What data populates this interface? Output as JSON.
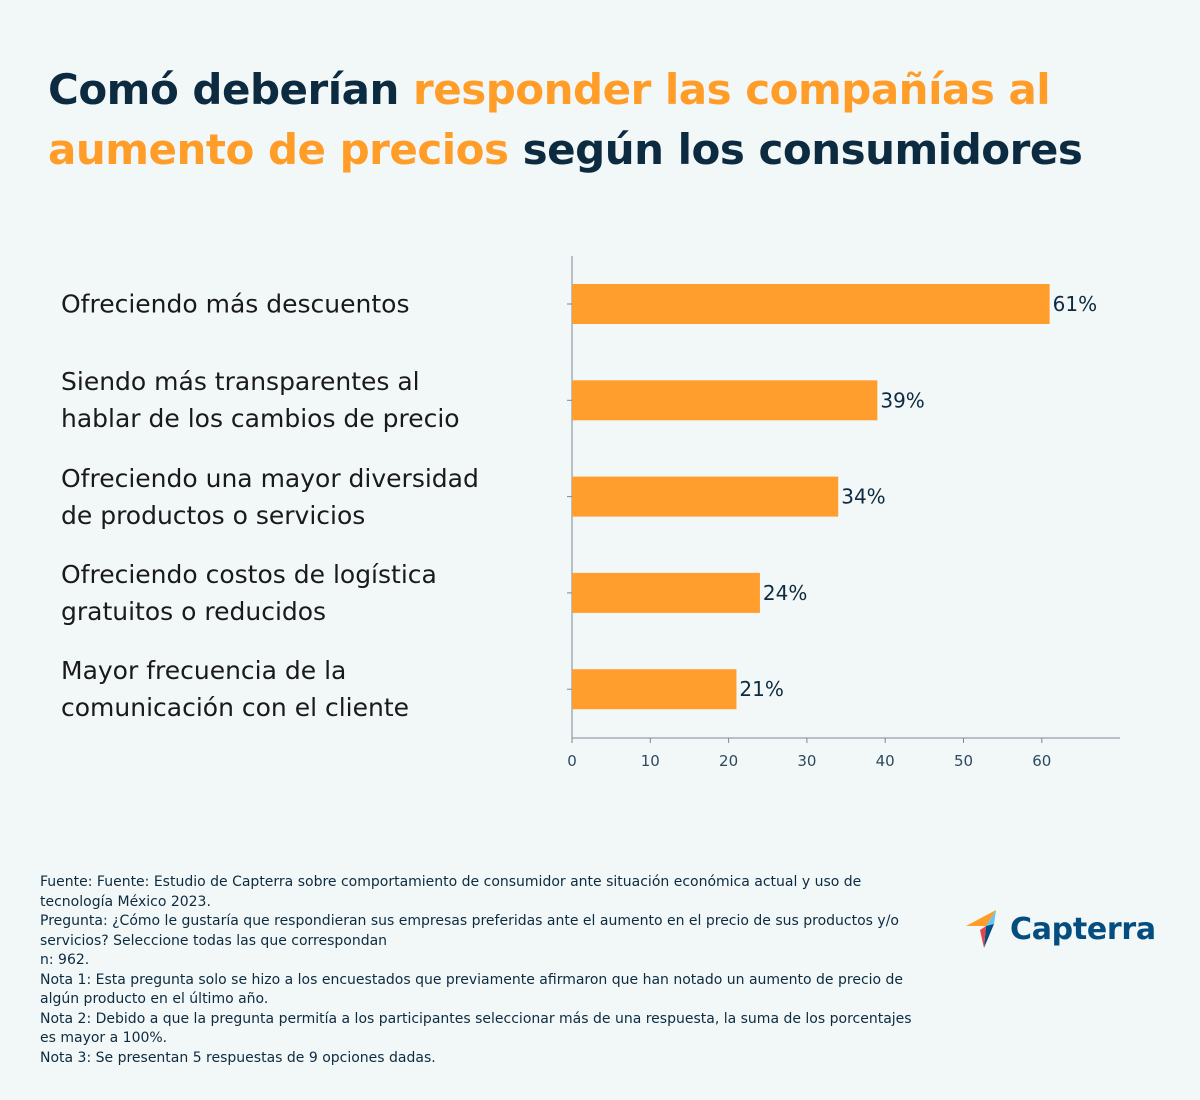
{
  "title": {
    "part1": "Comó deberían ",
    "part2": "responder las compañías al aumento de precios",
    "part3": " según los consumidores"
  },
  "colors": {
    "accent": "#ff9d2d",
    "dark": "#0d2b40",
    "background": "#f2f7f7"
  },
  "chart_data": {
    "type": "bar",
    "orientation": "horizontal",
    "title": "Comó deberían responder las compañías al aumento de precios según los consumidores",
    "categories": [
      "Ofreciendo más descuentos",
      "Siendo más transparentes al hablar de los cambios de precio",
      "Ofreciendo una mayor diversidad de productos o servicios",
      "Ofreciendo costos de logística gratuitos o reducidos",
      "Mayor frecuencia de la comunicación con el cliente"
    ],
    "category_lines": [
      [
        "Ofreciendo más descuentos"
      ],
      [
        "Siendo más transparentes al",
        "hablar de los cambios de precio"
      ],
      [
        "Ofreciendo una mayor diversidad",
        "de productos o servicios"
      ],
      [
        "Ofreciendo costos de logística",
        "gratuitos o reducidos"
      ],
      [
        "Mayor frecuencia de la",
        "comunicación con el cliente"
      ]
    ],
    "values": [
      61,
      39,
      34,
      24,
      21
    ],
    "value_labels": [
      "61%",
      "39%",
      "34%",
      "24%",
      "21%"
    ],
    "xlim": [
      0,
      70
    ],
    "xticks": [
      0,
      10,
      20,
      30,
      40,
      50,
      60
    ],
    "xlabel": "",
    "ylabel": "",
    "grid": false
  },
  "footnote": {
    "source": "Fuente: Fuente: Estudio de Capterra sobre comportamiento de consumidor ante situación económica actual y uso de tecnología México 2023.",
    "question": "Pregunta: ¿Cómo le gustaría que respondieran sus empresas preferidas ante el aumento en el precio de sus productos y/o servicios? Seleccione todas las que correspondan",
    "n": "n: 962.",
    "note1": "Nota 1: Esta pregunta solo se hizo a los encuestados que previamente afirmaron que han notado un aumento de precio de algún producto en el último año.",
    "note2": "Nota 2: Debido a que la pregunta permitía a los participantes seleccionar más de una respuesta, la suma de los porcentajes es mayor a 100%.",
    "note3": "Nota 3: Se presentan 5 respuestas de 9 opciones dadas."
  },
  "logo": {
    "text": "Capterra",
    "icon": "capterra-logo-icon"
  }
}
